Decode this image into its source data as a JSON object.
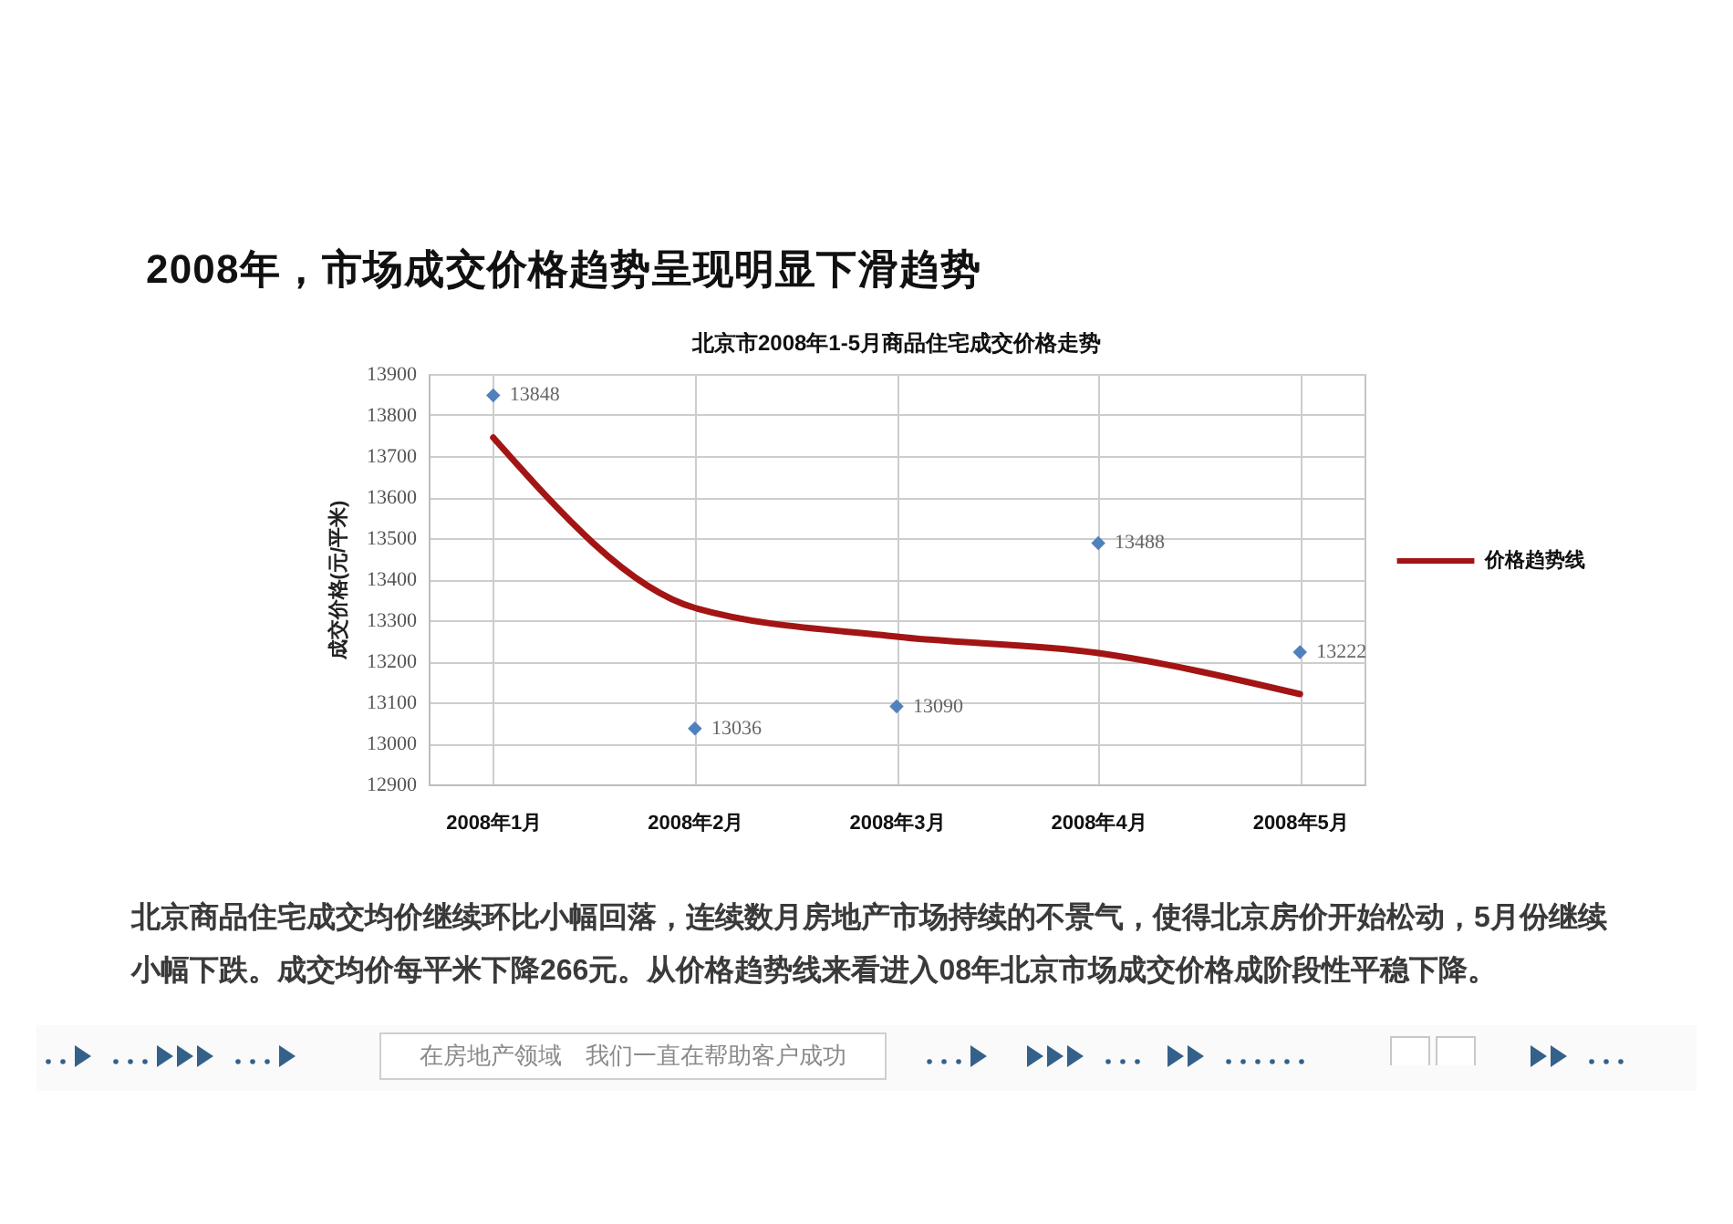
{
  "chart_data": {
    "type": "scatter",
    "title": "2008年，市场成交价格趋势呈现明显下滑趋势",
    "subtitle": "北京市2008年1-5月商品住宅成交价格走势",
    "ylabel": "成交价格(元/平米)",
    "annotations": [
      "北京商品住宅成交均价继续环比小幅回落，连续数月房地产市场持续的不景气，使得北京房价开始松动，5月份继续小幅下跌。成交均价每平米下降266元。从价格趋势线来看进入08年北京市场成交价格成阶段性平稳下降。",
      "在房地产领域　我们一直在帮助客户成功"
    ],
    "categories": [
      "2008年1月",
      "2008年2月",
      "2008年3月",
      "2008年4月",
      "2008年5月"
    ],
    "ylim": [
      12900,
      13900
    ],
    "yticks": [
      12900,
      13000,
      13100,
      13200,
      13300,
      13400,
      13500,
      13600,
      13700,
      13800,
      13900
    ],
    "grid": true,
    "legend": "right",
    "series": [
      {
        "color": "#4f81bd",
        "marker": "diamond",
        "values": [
          13848,
          13036,
          13090,
          13488,
          13222
        ],
        "value_labels": [
          "13848",
          "13036",
          "13090",
          "13488",
          "13222"
        ]
      },
      {
        "type": "line",
        "name": "价格趋势线",
        "color": "#a31515",
        "values": [
          13745,
          13330,
          13260,
          13220,
          13120
        ]
      }
    ]
  }
}
